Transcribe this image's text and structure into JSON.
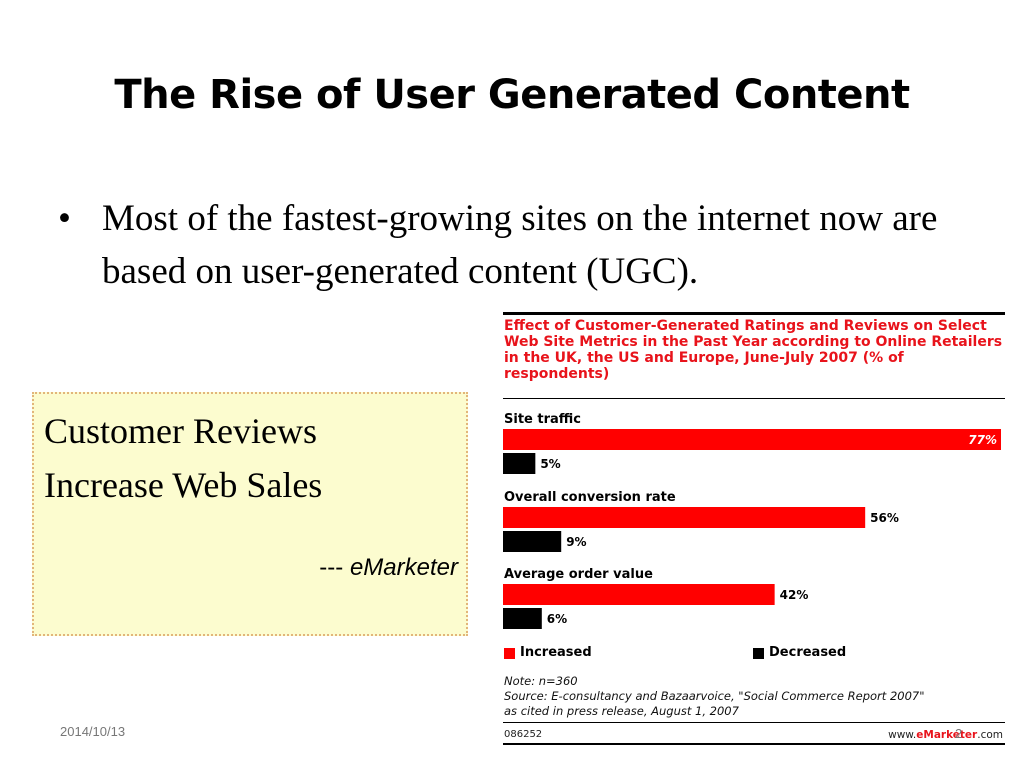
{
  "slide": {
    "title": "The Rise of User Generated Content",
    "bullet_symbol": "•",
    "bullet_text": "Most of the fastest-growing sites on the internet now are based on user-generated content (UGC).",
    "quote_line1": "Customer Reviews",
    "quote_line2": "Increase Web Sales",
    "quote_attr_prefix": "--- ",
    "quote_attr_source": "eMarketer",
    "date": "2014/10/13",
    "page_number": "2"
  },
  "chart_data": {
    "type": "bar",
    "title": "Effect of Customer-Generated Ratings and Reviews on Select Web Site Metrics in the Past Year according to Online Retailers in the UK, the US and Europe, June-July 2007 (% of respondents)",
    "categories": [
      "Site traffic",
      "Overall conversion rate",
      "Average order value"
    ],
    "series": [
      {
        "name": "Increased",
        "color": "#ff0000",
        "values": [
          77,
          56,
          42
        ],
        "labels": [
          "77%",
          "56%",
          "42%"
        ]
      },
      {
        "name": "Decreased",
        "color": "#000000",
        "values": [
          5,
          9,
          6
        ],
        "labels": [
          "5%",
          "9%",
          "6%"
        ]
      }
    ],
    "xlim": [
      0,
      77
    ],
    "legend": "bottom",
    "note_lines": [
      "Note: n=360",
      "Source: E-consultancy and Bazaarvoice, \"Social Commerce Report 2007\"",
      "as cited in press release, August 1, 2007"
    ],
    "chart_id": "086252",
    "brand_prefix": "www.",
    "brand_bold": "eMarketer",
    "brand_suffix": ".com"
  }
}
